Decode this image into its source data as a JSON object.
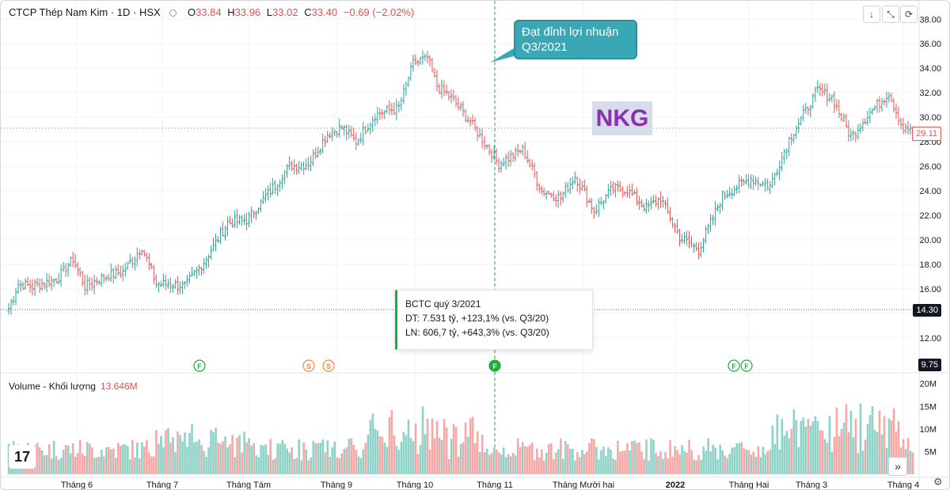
{
  "header": {
    "symbol": "CTCP Thép Nam Kim · 1D · HSX",
    "open_label": "O",
    "open": "33.84",
    "high_label": "H",
    "high": "33.96",
    "low_label": "L",
    "low": "33.02",
    "close_label": "C",
    "close": "33.40",
    "change": "−0.69 (−2.02%)"
  },
  "toolbar": {
    "down_icon": "↓",
    "collapse_icon": "⤡",
    "refresh_icon": "⟳"
  },
  "annotations": {
    "callout_line1": "Đạt đỉnh lợi nhuận",
    "callout_line2": "Q3/2021",
    "ticker_badge": "NKG",
    "tooltip_title": "BCTC quý 3/2021",
    "tooltip_revenue": "DT: 7.531 tỷ, +123,1% (vs. Q3/20)",
    "tooltip_profit": "LN: 606,7 tỷ, +643,3% (vs. Q3/20)"
  },
  "markers": {
    "f": "F",
    "s": "S"
  },
  "volume_panel": {
    "title": "Volume - Khối lượng",
    "value": "13.646M"
  },
  "price_tags": {
    "last": "29.11",
    "hline": "14.30",
    "cursor": "9.75"
  },
  "colors": {
    "up": "#26a69a",
    "down": "#ef5350",
    "vol_up": "#8fd3c8",
    "vol_down": "#f5a8a6",
    "grid": "#f0f3fa"
  },
  "chart_data": {
    "type": "bar",
    "panes": [
      "price (OHLC bars)",
      "volume"
    ],
    "y_ticks": [
      "38.00",
      "36.00",
      "34.00",
      "32.00",
      "30.00",
      "28.00",
      "26.00",
      "24.00",
      "22.00",
      "20.00",
      "18.00",
      "16.00",
      "14.00",
      "12.00"
    ],
    "ylim": [
      9.4,
      38.6
    ],
    "volume_ticks": [
      "20M",
      "15M",
      "10M",
      "5M"
    ],
    "volume_lim": [
      0,
      21
    ],
    "x_ticks": [
      "Tháng 6",
      "Tháng 7",
      "Tháng Tám",
      "Tháng 9",
      "Tháng 10",
      "Tháng 11",
      "Tháng Mười hai",
      "2022",
      "Tháng Hai",
      "Tháng 3",
      "Tháng 4"
    ],
    "horizontal_line": 14.3,
    "close_waypoints": [
      [
        0,
        14.4
      ],
      [
        4,
        16.4
      ],
      [
        10,
        16.2
      ],
      [
        20,
        16.8
      ],
      [
        27,
        18.4
      ],
      [
        32,
        16.2
      ],
      [
        40,
        17.0
      ],
      [
        48,
        17.4
      ],
      [
        56,
        19.4
      ],
      [
        62,
        16.4
      ],
      [
        68,
        16.4
      ],
      [
        74,
        16.2
      ],
      [
        82,
        18.2
      ],
      [
        92,
        21.4
      ],
      [
        100,
        21.6
      ],
      [
        110,
        24.0
      ],
      [
        118,
        26.0
      ],
      [
        126,
        26.2
      ],
      [
        134,
        28.6
      ],
      [
        140,
        29.2
      ],
      [
        146,
        28.0
      ],
      [
        154,
        30.2
      ],
      [
        164,
        30.8
      ],
      [
        170,
        34.4
      ],
      [
        176,
        34.8
      ],
      [
        180,
        32.6
      ],
      [
        186,
        31.6
      ],
      [
        194,
        29.6
      ],
      [
        206,
        26.2
      ],
      [
        216,
        27.4
      ],
      [
        224,
        24.0
      ],
      [
        232,
        23.4
      ],
      [
        238,
        25.2
      ],
      [
        246,
        22.4
      ],
      [
        254,
        24.2
      ],
      [
        260,
        24.0
      ],
      [
        268,
        22.6
      ],
      [
        274,
        23.4
      ],
      [
        282,
        20.2
      ],
      [
        290,
        19.2
      ],
      [
        300,
        23.6
      ],
      [
        312,
        25.0
      ],
      [
        320,
        24.4
      ],
      [
        328,
        28.2
      ],
      [
        340,
        32.2
      ],
      [
        346,
        31.6
      ],
      [
        354,
        28.4
      ],
      [
        362,
        30.4
      ],
      [
        370,
        32.0
      ],
      [
        376,
        29.0
      ],
      [
        380,
        29.11
      ]
    ],
    "total_bars": 381,
    "volume_series": "pseudo-random daily volumes between ~2M and ~19M, highest around Oct–Nov 2021 and Feb–Mar 2022"
  }
}
